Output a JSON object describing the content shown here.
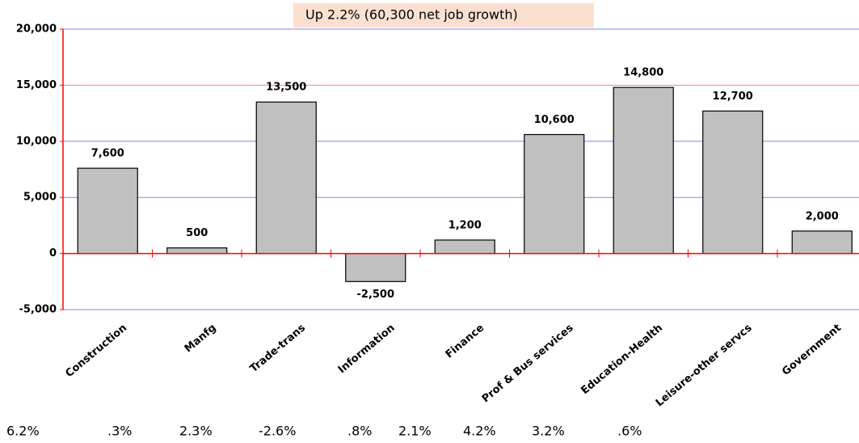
{
  "chart_data": {
    "type": "bar",
    "title": "Up 2.2% (60,300 net job growth)",
    "categories": [
      "Construction",
      "Manfg",
      "Trade-trans",
      "Information",
      "Finance",
      "Prof & Bus services",
      "Education-Health",
      "Leisure-other servcs",
      "Government"
    ],
    "values": [
      7600,
      500,
      13500,
      -2500,
      1200,
      10600,
      14800,
      12700,
      2000
    ],
    "value_labels": [
      "7,600",
      "500",
      "13,500",
      "-2,500",
      "1,200",
      "10,600",
      "14,800",
      "12,700",
      "2,000"
    ],
    "color": "#c0c0c0",
    "ylim": [
      -5000,
      20000
    ],
    "yticks": [
      {
        "value": -5000,
        "label": "-5,000"
      },
      0,
      {
        "value": 5000,
        "label": "5,000"
      },
      {
        "value": 10000,
        "label": "10,000"
      },
      {
        "value": 15000,
        "label": "15,000"
      },
      {
        "value": 20000,
        "label": "20,000"
      }
    ],
    "grid": true,
    "grid_colors": [
      "#8080ff",
      "#ff0000",
      "#8080ff",
      "#8080ff",
      "#ff8080",
      "#8080ff"
    ],
    "axis_color": "#ff0000",
    "footer_labels": [
      "6.2%",
      ".3%",
      "2.3%",
      "-2.6%",
      ".8%",
      "2.1%",
      "4.2%",
      "3.2%",
      ".6%"
    ]
  }
}
